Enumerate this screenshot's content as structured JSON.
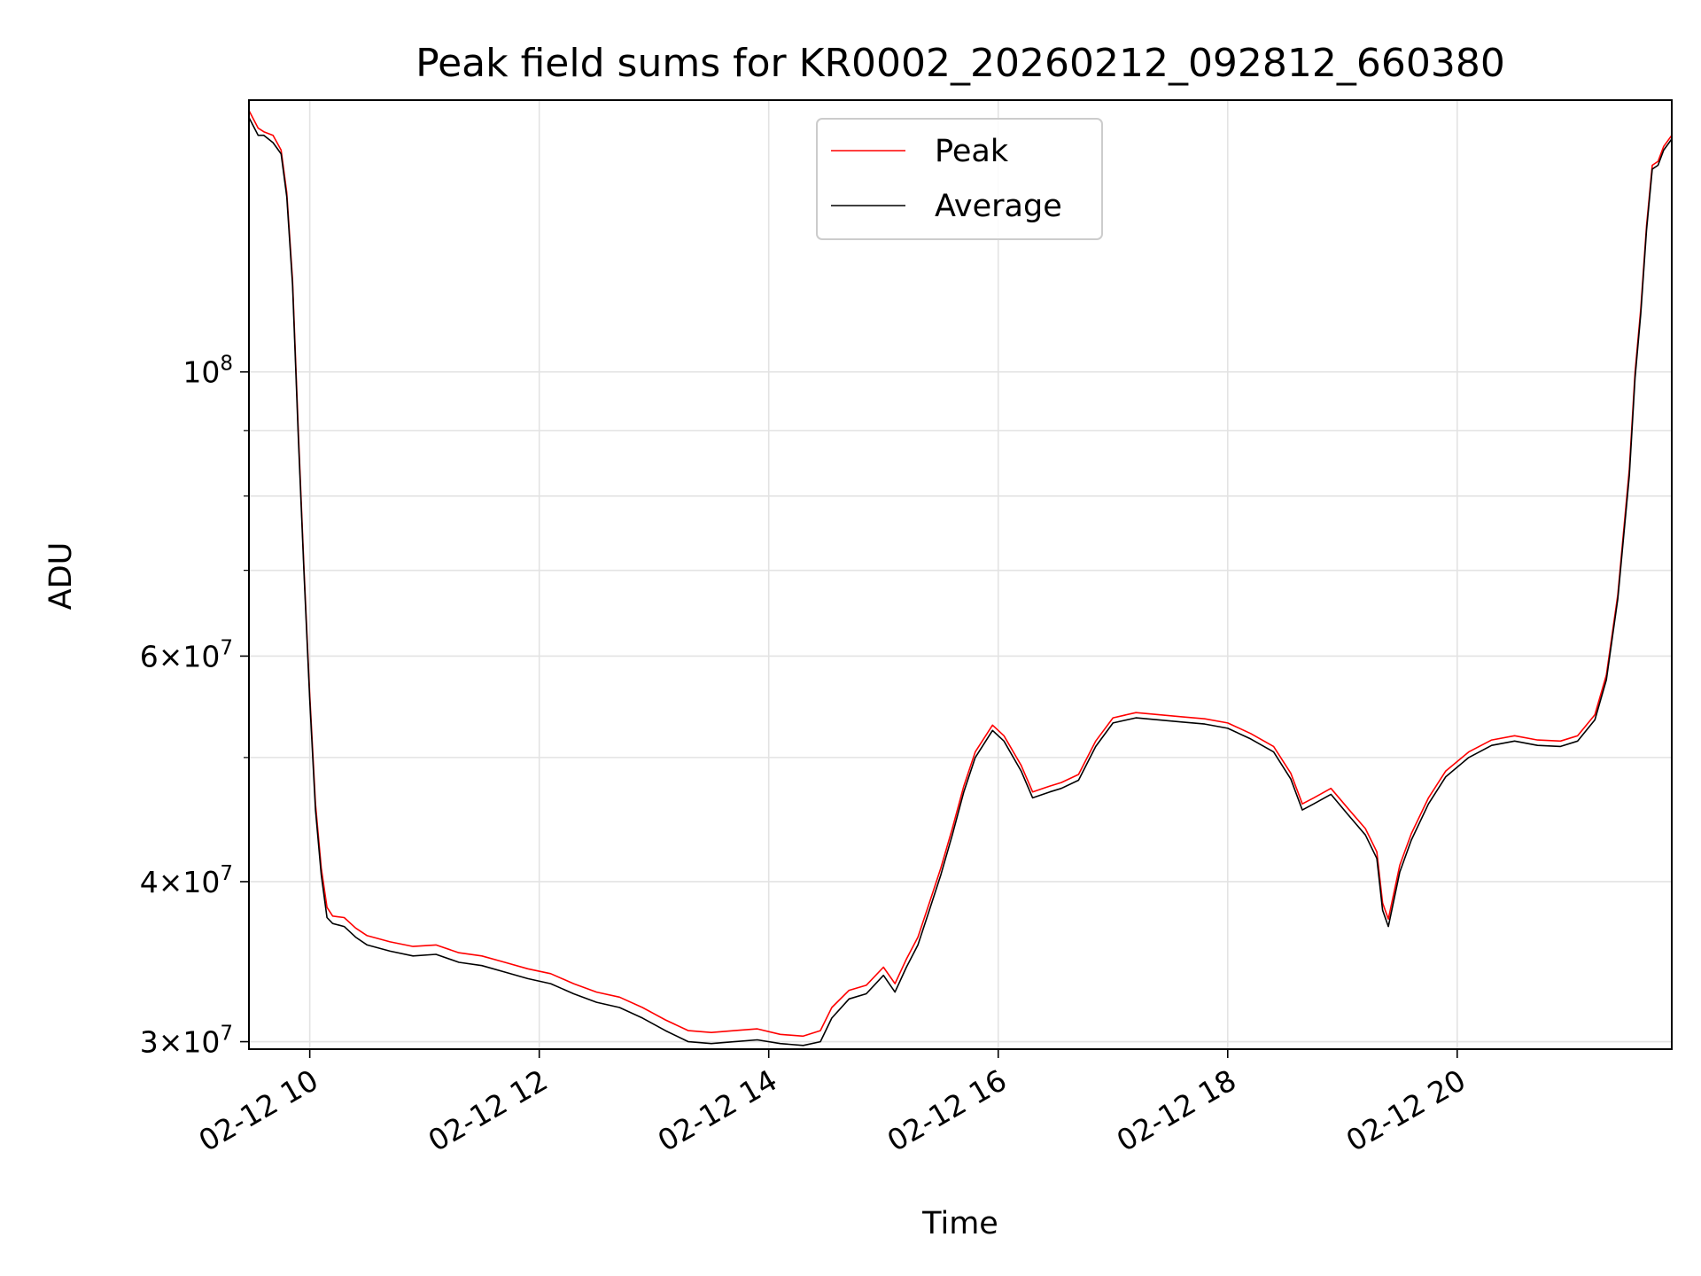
{
  "chart_data": {
    "type": "line",
    "title": "Peak field sums for KR0002_20260212_092812_660380",
    "xlabel": "Time",
    "ylabel": "ADU",
    "yscale": "log",
    "grid": true,
    "legend_position": "top-center",
    "xlim": [
      9.47,
      21.87
    ],
    "ylim": [
      29600000,
      163000000
    ],
    "x_ticks": [
      {
        "value": 10,
        "label": "02-12 10"
      },
      {
        "value": 12,
        "label": "02-12 12"
      },
      {
        "value": 14,
        "label": "02-12 14"
      },
      {
        "value": 16,
        "label": "02-12 16"
      },
      {
        "value": 18,
        "label": "02-12 18"
      },
      {
        "value": 20,
        "label": "02-12 20"
      }
    ],
    "y_ticks": [
      {
        "value": 30000000,
        "base": "3×10",
        "exp": "7"
      },
      {
        "value": 40000000,
        "base": "4×10",
        "exp": "7"
      },
      {
        "value": 60000000,
        "base": "6×10",
        "exp": "7"
      },
      {
        "value": 100000000,
        "base": "10",
        "exp": "8"
      }
    ],
    "y_minor_ticks": [
      50000000,
      70000000,
      80000000,
      90000000
    ],
    "series": [
      {
        "name": "Peak",
        "color": "#ff0000",
        "x": [
          9.47,
          9.55,
          9.6,
          9.68,
          9.75,
          9.8,
          9.85,
          9.9,
          9.95,
          10.0,
          10.05,
          10.1,
          10.15,
          10.2,
          10.3,
          10.4,
          10.5,
          10.7,
          10.9,
          11.1,
          11.3,
          11.5,
          11.7,
          11.9,
          12.1,
          12.3,
          12.5,
          12.7,
          12.9,
          13.1,
          13.3,
          13.5,
          13.7,
          13.9,
          14.1,
          14.3,
          14.45,
          14.55,
          14.7,
          14.85,
          15.0,
          15.1,
          15.2,
          15.3,
          15.4,
          15.5,
          15.6,
          15.7,
          15.8,
          15.95,
          16.05,
          16.2,
          16.3,
          16.45,
          16.55,
          16.7,
          16.85,
          17.0,
          17.2,
          17.4,
          17.6,
          17.8,
          18.0,
          18.2,
          18.4,
          18.55,
          18.65,
          18.75,
          18.9,
          19.05,
          19.2,
          19.3,
          19.35,
          19.4,
          19.5,
          19.6,
          19.75,
          19.9,
          20.1,
          20.3,
          20.5,
          20.7,
          20.9,
          21.05,
          21.2,
          21.3,
          21.4,
          21.5,
          21.55,
          21.6,
          21.65,
          21.7,
          21.75,
          21.8,
          21.87
        ],
        "y": [
          160000000,
          155000000,
          154000000,
          153000000,
          149000000,
          138000000,
          118000000,
          90000000,
          70000000,
          56000000,
          46000000,
          41000000,
          38200000,
          37600000,
          37500000,
          36800000,
          36300000,
          35900000,
          35600000,
          35700000,
          35200000,
          35000000,
          34600000,
          34200000,
          33900000,
          33300000,
          32800000,
          32500000,
          31900000,
          31200000,
          30600000,
          30500000,
          30600000,
          30700000,
          30400000,
          30300000,
          30600000,
          31900000,
          32900000,
          33200000,
          34300000,
          33300000,
          34800000,
          36200000,
          38500000,
          41000000,
          44000000,
          47500000,
          50500000,
          53000000,
          52000000,
          49300000,
          47000000,
          47500000,
          47800000,
          48500000,
          51500000,
          53700000,
          54200000,
          54000000,
          53800000,
          53600000,
          53200000,
          52200000,
          51000000,
          48600000,
          46000000,
          46500000,
          47300000,
          45600000,
          44000000,
          42200000,
          38500000,
          37400000,
          41200000,
          43600000,
          46500000,
          48800000,
          50500000,
          51600000,
          52000000,
          51600000,
          51500000,
          52000000,
          54000000,
          58000000,
          67000000,
          84000000,
          100000000,
          112000000,
          130000000,
          145000000,
          146000000,
          150000000,
          153000000
        ]
      },
      {
        "name": "Average",
        "color": "#000000",
        "x": [
          9.47,
          9.55,
          9.6,
          9.68,
          9.75,
          9.8,
          9.85,
          9.9,
          9.95,
          10.0,
          10.05,
          10.1,
          10.15,
          10.2,
          10.3,
          10.4,
          10.5,
          10.7,
          10.9,
          11.1,
          11.3,
          11.5,
          11.7,
          11.9,
          12.1,
          12.3,
          12.5,
          12.7,
          12.9,
          13.1,
          13.3,
          13.5,
          13.7,
          13.9,
          14.1,
          14.3,
          14.45,
          14.55,
          14.7,
          14.85,
          15.0,
          15.1,
          15.2,
          15.3,
          15.4,
          15.5,
          15.6,
          15.7,
          15.8,
          15.95,
          16.05,
          16.2,
          16.3,
          16.45,
          16.55,
          16.7,
          16.85,
          17.0,
          17.2,
          17.4,
          17.6,
          17.8,
          18.0,
          18.2,
          18.4,
          18.55,
          18.65,
          18.75,
          18.9,
          19.05,
          19.2,
          19.3,
          19.35,
          19.4,
          19.5,
          19.6,
          19.75,
          19.9,
          20.1,
          20.3,
          20.5,
          20.7,
          20.9,
          21.05,
          21.2,
          21.3,
          21.4,
          21.5,
          21.55,
          21.6,
          21.65,
          21.7,
          21.75,
          21.8,
          21.87
        ],
        "y": [
          158000000,
          153000000,
          153000000,
          151000000,
          148000000,
          137000000,
          117000000,
          89000000,
          69500000,
          55500000,
          45500000,
          40500000,
          37500000,
          37100000,
          36900000,
          36200000,
          35700000,
          35300000,
          35000000,
          35100000,
          34600000,
          34400000,
          34000000,
          33600000,
          33300000,
          32700000,
          32200000,
          31900000,
          31300000,
          30600000,
          30000000,
          29900000,
          30000000,
          30100000,
          29900000,
          29800000,
          30000000,
          31300000,
          32400000,
          32700000,
          33800000,
          32800000,
          34300000,
          35700000,
          38000000,
          40500000,
          43500000,
          47000000,
          50000000,
          52500000,
          51500000,
          48800000,
          46500000,
          47000000,
          47300000,
          48000000,
          51000000,
          53200000,
          53700000,
          53500000,
          53300000,
          53100000,
          52700000,
          51700000,
          50500000,
          48100000,
          45500000,
          46000000,
          46800000,
          45100000,
          43500000,
          41700000,
          38000000,
          36900000,
          40700000,
          43100000,
          46000000,
          48300000,
          50000000,
          51100000,
          51500000,
          51100000,
          51000000,
          51500000,
          53500000,
          57500000,
          66500000,
          83000000,
          99000000,
          111000000,
          129000000,
          144000000,
          145000000,
          149000000,
          152000000
        ]
      }
    ]
  }
}
